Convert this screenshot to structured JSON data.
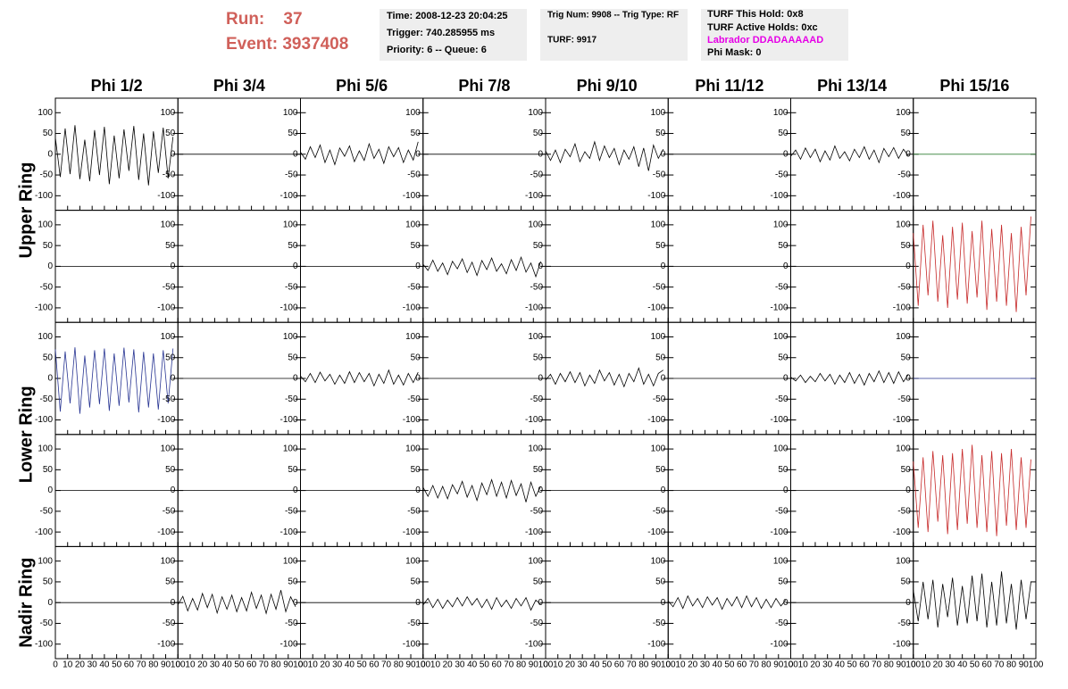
{
  "header": {
    "run": "Run:    37",
    "event": "Event: 3937408",
    "box1": [
      "Time: 2008-12-23 20:04:25",
      "Trigger: 740.285955 ms",
      "Priority: 6 -- Queue: 6"
    ],
    "box2": [
      "Trig Num: 9908 -- Trig Type: RF",
      "TURF: 9917"
    ],
    "box3": [
      "TURF This Hold: 0x8",
      "TURF Active Holds: 0xc",
      "Labrador DDADAAAAAD",
      "Phi Mask: 0"
    ]
  },
  "chart_data": {
    "type": "line",
    "columns": [
      "Phi 1/2",
      "Phi 3/4",
      "Phi 5/6",
      "Phi 7/8",
      "Phi 9/10",
      "Phi 11/12",
      "Phi 13/14",
      "Phi 15/16"
    ],
    "rows": [
      "Upper Ring",
      null,
      "Lower Ring",
      null,
      "Nadir Ring"
    ],
    "color": "#000000",
    "xlim": [
      0,
      100
    ],
    "xticks": [
      0,
      10,
      20,
      30,
      40,
      50,
      60,
      70,
      80,
      90,
      100
    ],
    "ylim": [
      -135,
      135
    ],
    "yticks": [
      -100,
      -50,
      0,
      50,
      100
    ],
    "x": [
      0,
      4,
      8,
      12,
      16,
      20,
      24,
      28,
      32,
      36,
      40,
      44,
      48,
      52,
      56,
      60,
      64,
      68,
      72,
      76,
      80,
      84,
      88,
      92,
      96
    ],
    "panels": [
      [
        {
          "values": [
            40,
            -55,
            62,
            -48,
            70,
            -60,
            35,
            -65,
            58,
            -50,
            66,
            -72,
            45,
            -58,
            60,
            -40,
            68,
            -62,
            50,
            -75,
            55,
            -45,
            64,
            -58,
            42
          ]
        },
        {
          "x": [
            0,
            100
          ],
          "values": [
            0,
            0
          ]
        },
        {
          "values": [
            5,
            -12,
            18,
            -8,
            22,
            -20,
            10,
            -25,
            15,
            -5,
            20,
            -18,
            8,
            -15,
            25,
            -10,
            12,
            -22,
            18,
            -6,
            16,
            -20,
            10,
            -14,
            30
          ]
        },
        {
          "x": [
            0,
            100
          ],
          "values": [
            0,
            0
          ]
        },
        {
          "values": [
            8,
            -15,
            10,
            -20,
            12,
            -6,
            25,
            -18,
            6,
            -10,
            30,
            -15,
            20,
            -8,
            14,
            -25,
            10,
            -12,
            18,
            -30,
            15,
            -40,
            22,
            -10,
            12
          ]
        },
        {
          "x": [
            0,
            100
          ],
          "values": [
            0,
            0
          ]
        },
        {
          "values": [
            -5,
            10,
            -12,
            15,
            -8,
            12,
            -18,
            8,
            -14,
            20,
            -10,
            6,
            -16,
            12,
            -8,
            18,
            -12,
            10,
            -20,
            14,
            -6,
            16,
            -10,
            12,
            -4
          ]
        },
        {
          "x": [
            0,
            100
          ],
          "values": [
            0,
            0
          ],
          "color": "#2e7d32"
        }
      ],
      [
        {
          "x": [
            0,
            100
          ],
          "values": [
            0,
            0
          ]
        },
        {
          "x": [
            0,
            100
          ],
          "values": [
            0,
            0
          ]
        },
        {
          "x": [
            0,
            100
          ],
          "values": [
            0,
            0
          ]
        },
        {
          "values": [
            5,
            -10,
            15,
            -12,
            8,
            -20,
            12,
            -6,
            18,
            -15,
            10,
            -22,
            14,
            -8,
            20,
            -12,
            6,
            -18,
            16,
            -10,
            22,
            -14,
            8,
            -25,
            12
          ]
        },
        {
          "x": [
            0,
            100
          ],
          "values": [
            0,
            0
          ]
        },
        {
          "x": [
            0,
            100
          ],
          "values": [
            0,
            0
          ]
        },
        {
          "x": [
            0,
            100
          ],
          "values": [
            0,
            0
          ]
        },
        {
          "values": [
            80,
            -95,
            100,
            -70,
            110,
            -85,
            75,
            -100,
            95,
            -80,
            105,
            -90,
            85,
            -75,
            110,
            -105,
            90,
            -85,
            100,
            -95,
            80,
            -110,
            95,
            -70,
            120
          ],
          "color": "#c62828"
        }
      ],
      [
        {
          "values": [
            70,
            -80,
            65,
            -60,
            75,
            -85,
            55,
            -70,
            68,
            -62,
            72,
            -78,
            60,
            -66,
            74,
            -58,
            70,
            -82,
            64,
            -70,
            60,
            -75,
            68,
            -60,
            72
          ],
          "color": "#283593"
        },
        {
          "x": [
            0,
            100
          ],
          "values": [
            0,
            0
          ]
        },
        {
          "values": [
            6,
            -8,
            12,
            -10,
            15,
            -6,
            10,
            -14,
            8,
            -12,
            16,
            -10,
            14,
            -8,
            12,
            -18,
            10,
            -12,
            20,
            -14,
            8,
            -16,
            12,
            -10,
            15
          ]
        },
        {
          "x": [
            0,
            100
          ],
          "values": [
            0,
            0
          ]
        },
        {
          "values": [
            -4,
            10,
            -14,
            12,
            -8,
            16,
            -10,
            14,
            -18,
            8,
            -12,
            20,
            -6,
            14,
            -16,
            10,
            -20,
            12,
            -8,
            25,
            -14,
            10,
            -18,
            12,
            20
          ]
        },
        {
          "x": [
            0,
            100
          ],
          "values": [
            0,
            0
          ]
        },
        {
          "values": [
            3,
            -6,
            8,
            -10,
            5,
            -8,
            12,
            -6,
            10,
            -14,
            8,
            -10,
            14,
            -12,
            10,
            -16,
            12,
            -8,
            18,
            -10,
            14,
            -12,
            16,
            -8,
            10
          ]
        },
        {
          "x": [
            0,
            100
          ],
          "values": [
            0,
            0
          ],
          "color": "#283593"
        }
      ],
      [
        {
          "x": [
            0,
            100
          ],
          "values": [
            0,
            0
          ]
        },
        {
          "x": [
            0,
            100
          ],
          "values": [
            0,
            0
          ]
        },
        {
          "x": [
            0,
            100
          ],
          "values": [
            0,
            0
          ]
        },
        {
          "values": [
            8,
            -14,
            12,
            -18,
            10,
            -20,
            14,
            -8,
            22,
            -16,
            12,
            -24,
            18,
            -10,
            26,
            -14,
            20,
            -18,
            24,
            -12,
            16,
            -28,
            20,
            -14,
            10
          ]
        },
        {
          "x": [
            0,
            100
          ],
          "values": [
            0,
            0
          ]
        },
        {
          "x": [
            0,
            100
          ],
          "values": [
            0,
            0
          ]
        },
        {
          "x": [
            0,
            100
          ],
          "values": [
            0,
            0
          ]
        },
        {
          "values": [
            70,
            -90,
            80,
            -100,
            95,
            -75,
            85,
            -105,
            90,
            -95,
            100,
            -80,
            110,
            -90,
            85,
            -100,
            95,
            -110,
            90,
            -85,
            100,
            -95,
            80,
            -90,
            75
          ],
          "color": "#c62828"
        }
      ],
      [
        {
          "x": [
            0,
            100
          ],
          "values": [
            0,
            0
          ]
        },
        {
          "values": [
            -5,
            15,
            -20,
            10,
            -18,
            22,
            -12,
            20,
            -25,
            14,
            -16,
            18,
            -22,
            12,
            -20,
            25,
            -14,
            18,
            -26,
            20,
            -16,
            30,
            -22,
            14,
            -10
          ]
        },
        {
          "x": [
            0,
            100
          ],
          "values": [
            0,
            0
          ]
        },
        {
          "values": [
            -6,
            10,
            -12,
            8,
            -14,
            6,
            -10,
            12,
            -8,
            14,
            -6,
            10,
            -12,
            8,
            -16,
            12,
            -10,
            6,
            -14,
            10,
            -8,
            12,
            -18,
            6,
            -4
          ]
        },
        {
          "x": [
            0,
            100
          ],
          "values": [
            0,
            0
          ]
        },
        {
          "values": [
            4,
            -10,
            12,
            -14,
            16,
            -8,
            10,
            -12,
            14,
            -6,
            12,
            -16,
            10,
            -8,
            14,
            -12,
            16,
            -10,
            12,
            -14,
            8,
            -12,
            10,
            -8,
            6
          ]
        },
        {
          "x": [
            0,
            100
          ],
          "values": [
            0,
            0
          ]
        },
        {
          "values": [
            30,
            -45,
            50,
            -40,
            55,
            -60,
            45,
            -35,
            60,
            -55,
            40,
            -50,
            65,
            -45,
            70,
            -60,
            50,
            -55,
            75,
            -50,
            45,
            -65,
            55,
            -40,
            50
          ]
        }
      ]
    ]
  }
}
